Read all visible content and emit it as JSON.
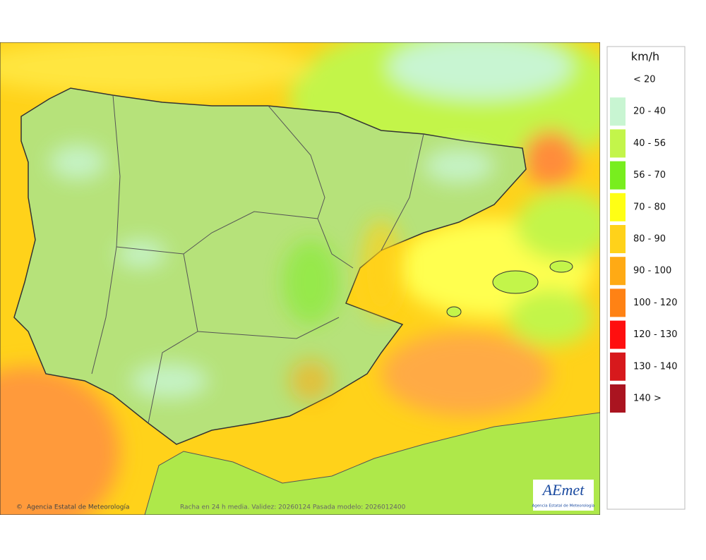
{
  "map": {
    "footer": {
      "credit": "Agencia Estatal de Meteorología",
      "caption": "Racha en 24 h media. Validez: 20260124 Pasada modelo: 2026012400"
    },
    "logo": {
      "name": "AEmet",
      "subtitle": "Agencia Estatal de Meteorología"
    },
    "legend": {
      "unit": "km/h",
      "items": [
        {
          "label": "< 20"
        },
        {
          "label": "20 - 40",
          "color": "#c8f5d2"
        },
        {
          "label": "40 - 56",
          "color": "#c3f54a"
        },
        {
          "label": "56 - 70",
          "color": "#78ee1e"
        },
        {
          "label": "70 - 80",
          "color": "#ffff14"
        },
        {
          "label": "80 - 90",
          "color": "#ffd21a"
        },
        {
          "label": "90 - 100",
          "color": "#ffaa14"
        },
        {
          "label": "100 - 120",
          "color": "#ff8214"
        },
        {
          "label": "120 - 130",
          "color": "#ff0f0f"
        },
        {
          "label": "130 - 140",
          "color": "#d7191c"
        },
        {
          "label": "140 >",
          "color": "#aa1420"
        }
      ]
    }
  }
}
